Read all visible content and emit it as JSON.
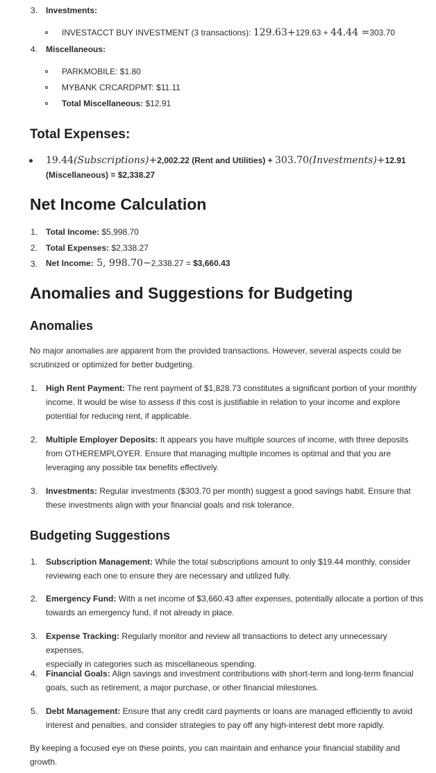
{
  "investments": {
    "number": "3.",
    "label": "Investments:",
    "item": {
      "label": "INVESTACCT BUY INVESTMENT (3 transactions):",
      "math_a": "129.63",
      "plus1": "+",
      "math_b": "129.63 + ",
      "math_c": "44.44",
      "eq": " =",
      "math_d": "303.70"
    }
  },
  "misc": {
    "number": "4.",
    "label": "Miscellaneous:",
    "items": [
      {
        "label": "PARKMOBILE: $1.80"
      },
      {
        "label": "MYBANK CRCARDPMT: $11.11"
      }
    ],
    "total_label": "Total Miscellaneous:",
    "total_value": " $12.91"
  },
  "total_expenses": {
    "heading": "Total Expenses:",
    "line1": {
      "a": "19.44",
      "b": "(Subscriptions)",
      "c": "+",
      "d": "2,002.22 (Rent and Utilities) + ",
      "e": "303.70",
      "f": "(Investments)",
      "g": "+",
      "h": "12.91"
    },
    "line2": "(Miscellaneous) = $2,338.27"
  },
  "net_income": {
    "heading": "Net Income Calculation",
    "items": [
      {
        "number": "1.",
        "label": "Total Income:",
        "value": " $5,998.70"
      },
      {
        "number": "2.",
        "label": "Total Expenses:",
        "value": " $2,338.27"
      }
    ],
    "item3": {
      "number": "3.",
      "label": "Net Income:",
      "math_a": " 5, 998.70",
      "math_b": "−",
      "math_c": "2,338.27 = ",
      "math_d": "$3,660.43"
    }
  },
  "anomalies_section": {
    "heading": "Anomalies and Suggestions for Budgeting",
    "sub_heading": "Anomalies",
    "intro_1": "No major anomalies are apparent from the provided transactions. However, several aspects could be",
    "intro_2": "scrutinized or optimized for better budgeting.",
    "items": [
      {
        "number": "1.",
        "title": "High Rent Payment:",
        "lines": [
          " The rent payment of $1,828.73 constitutes a significant portion of your monthly",
          "income. It would be wise to assess if this cost is justifiable in relation to your income and explore",
          "potential for reducing rent, if applicable."
        ]
      },
      {
        "number": "2.",
        "title": "Multiple Employer Deposits:",
        "lines": [
          " It appears you have multiple sources of income, with three deposits",
          "from OTHEREMPLOYER. Ensure that managing multiple incomes is optimal and that you are",
          "leveraging any possible tax benefits effectively."
        ]
      },
      {
        "number": "3.",
        "title": "Investments:",
        "lines": [
          " Regular investments ($303.70 per month) suggest a good savings habit. Ensure that",
          "these investments align with your financial goals and risk tolerance."
        ]
      }
    ]
  },
  "budgeting": {
    "heading": "Budgeting Suggestions",
    "items": [
      {
        "number": "1.",
        "title": "Subscription Management:",
        "lines": [
          " While the total subscriptions amount to only $19.44 monthly, consider",
          "reviewing each one to ensure they are necessary and utilized fully."
        ]
      },
      {
        "number": "2.",
        "title": "Emergency Fund:",
        "lines": [
          " With a net income of $3,660.43 after expenses, potentially allocate a portion of this",
          "towards an emergency fund, if not already in place."
        ]
      },
      {
        "number": "3.",
        "title": "Expense Tracking:",
        "lines": [
          " Regularly monitor and review all transactions to detect any unnecessary expenses,",
          "especially in categories such as miscellaneous spending."
        ]
      },
      {
        "number": "4.",
        "title": "Financial Goals:",
        "lines": [
          " Align savings and investment contributions with short-term and long-term financial",
          "goals, such as retirement, a major purchase, or other financial milestones."
        ]
      },
      {
        "number": "5.",
        "title": "Debt Management:",
        "lines": [
          " Ensure that any credit card payments or loans are managed efficiently to avoid",
          "interest and penalties, and consider strategies to pay off any high-interest debt more rapidly."
        ]
      }
    ],
    "closing_1": "By keeping a focused eye on these points, you can maintain and enhance your financial stability and",
    "closing_2": "growth."
  }
}
